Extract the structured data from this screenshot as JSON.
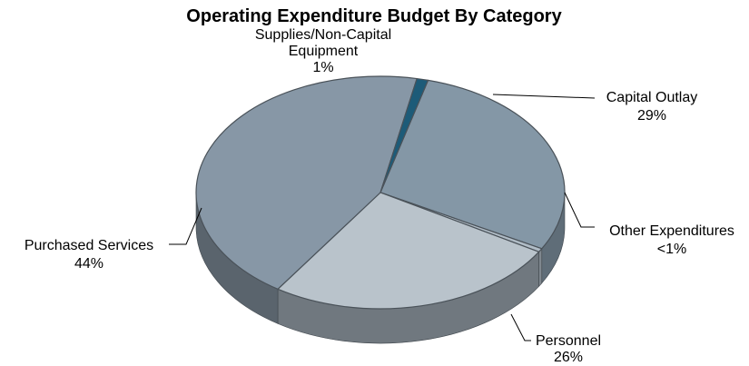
{
  "chart_data": {
    "type": "pie",
    "title": "Operating Expenditure Budget By Category",
    "slices": [
      {
        "label": "Capital Outlay",
        "pct_label": "29%",
        "value": 29,
        "color": "#8497a6",
        "side_color": "#5f6d78"
      },
      {
        "label": "Other Expenditures",
        "pct_label": "<1%",
        "value": 0.3,
        "color": "#b0bcc6",
        "side_color": "#80888f"
      },
      {
        "label": "Personnel",
        "pct_label": "26%",
        "value": 26,
        "color": "#b9c3cb",
        "side_color": "#70787f"
      },
      {
        "label": "Purchased Services",
        "pct_label": "44%",
        "value": 44,
        "color": "#8797a6",
        "side_color": "#5a646d"
      },
      {
        "label": "Supplies/Non-Capital",
        "label_line2": "Equipment",
        "pct_label": "1%",
        "value": 1,
        "color": "#1d5b78",
        "side_color": "#113a4e"
      }
    ]
  }
}
